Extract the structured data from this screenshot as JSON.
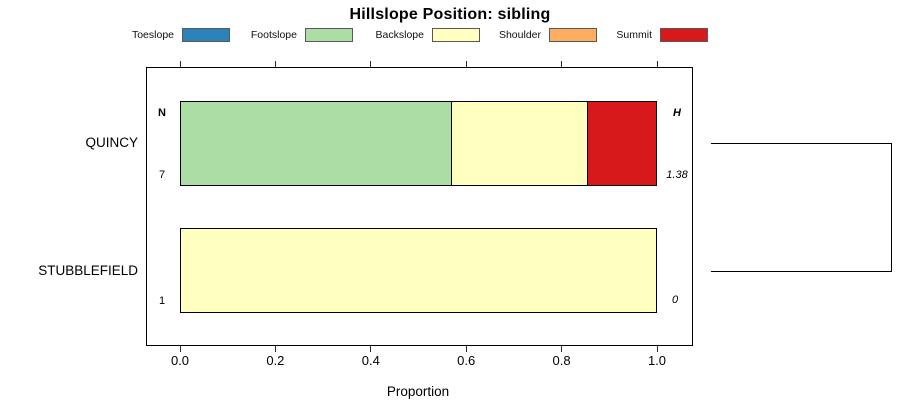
{
  "chart_data": {
    "type": "bar",
    "orientation": "horizontal-stacked",
    "title": "Hillslope Position: sibling",
    "xlabel": "Proportion",
    "xlim": [
      0,
      1
    ],
    "x_ticks": [
      0.0,
      0.2,
      0.4,
      0.6,
      0.8,
      1.0
    ],
    "x_tick_labels": [
      "0.0",
      "0.2",
      "0.4",
      "0.6",
      "0.8",
      "1.0"
    ],
    "grid": false,
    "legend_position": "top",
    "legend": [
      "Toeslope",
      "Footslope",
      "Backslope",
      "Shoulder",
      "Summit"
    ],
    "colors": {
      "Toeslope": "#2B83BA",
      "Footslope": "#ABDDA4",
      "Backslope": "#FFFFBF",
      "Shoulder": "#FDAE61",
      "Summit": "#D7191C"
    },
    "left_header": "N",
    "right_header": "H",
    "rows": [
      {
        "label": "QUINCY",
        "n": "7",
        "h": "1.38",
        "segments": [
          {
            "name": "Footslope",
            "value": 0.571
          },
          {
            "name": "Backslope",
            "value": 0.286
          },
          {
            "name": "Summit",
            "value": 0.143
          }
        ]
      },
      {
        "label": "STUBBLEFIELD",
        "n": "1",
        "h": "0",
        "segments": [
          {
            "name": "Backslope",
            "value": 1.0
          }
        ]
      }
    ],
    "dendrogram": {
      "joins": [
        [
          "QUINCY",
          "STUBBLEFIELD"
        ]
      ]
    }
  }
}
